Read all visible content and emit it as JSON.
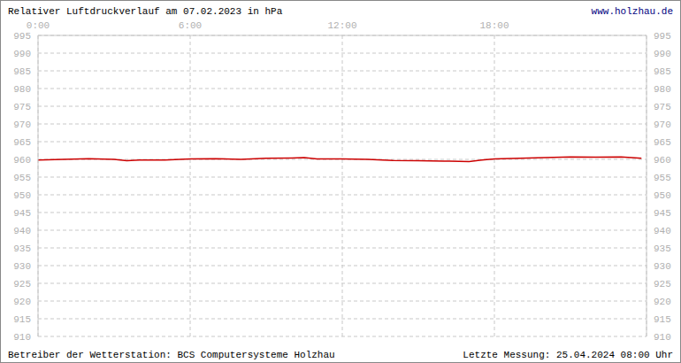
{
  "chart_data": {
    "type": "line",
    "title": "Relativer Luftdruckverlauf am 07.02.2023 in hPa",
    "subtitle": "www.holzhau.de",
    "annotations": [
      "Betreiber der Wetterstation: BCS Computersysteme Holzhau",
      "Letzte Messung: 25.04.2024 08:00 Uhr"
    ],
    "x": [
      0,
      1,
      2,
      3,
      3.5,
      4,
      5,
      6,
      7,
      8,
      9,
      10,
      10.5,
      11,
      12,
      13,
      14,
      15,
      16,
      17,
      17.5,
      18,
      19,
      20,
      21,
      22,
      23,
      23.8
    ],
    "values": [
      959.8,
      960.0,
      960.2,
      960.0,
      959.6,
      959.8,
      959.8,
      960.1,
      960.2,
      960.0,
      960.3,
      960.4,
      960.5,
      960.1,
      960.1,
      960.0,
      959.7,
      959.6,
      959.5,
      959.4,
      959.8,
      960.1,
      960.3,
      960.5,
      960.7,
      960.6,
      960.7,
      960.3
    ],
    "color": "#cc0000",
    "xlim": [
      0,
      24
    ],
    "xticks": [
      {
        "value": 0,
        "label": "0:00"
      },
      {
        "value": 6,
        "label": "6:00"
      },
      {
        "value": 12,
        "label": "12:00"
      },
      {
        "value": 18,
        "label": "18:00"
      }
    ],
    "ylim": [
      910,
      995
    ],
    "yticks": [
      910,
      915,
      920,
      925,
      930,
      935,
      940,
      945,
      950,
      955,
      960,
      965,
      970,
      975,
      980,
      985,
      990,
      995
    ],
    "grid": true
  }
}
